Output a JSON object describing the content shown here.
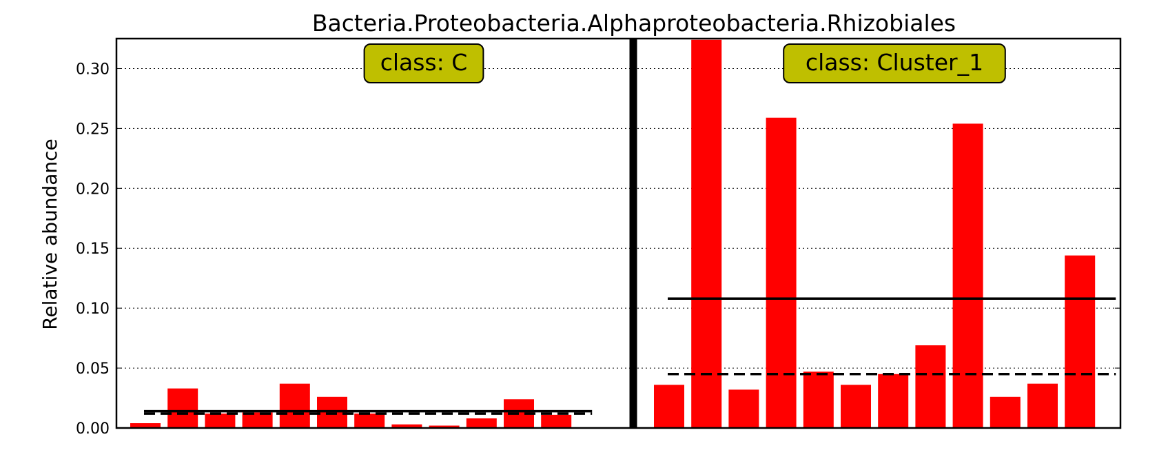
{
  "chart_data": {
    "type": "bar",
    "title": "Bacteria.Proteobacteria.Alphaproteobacteria.Rhizobiales",
    "ylabel": "Relative abundance",
    "xlabel": "",
    "ylim": [
      0,
      0.325
    ],
    "yticks": [
      "0.00",
      "0.05",
      "0.10",
      "0.15",
      "0.20",
      "0.25",
      "0.30"
    ],
    "grid": "horizontal dotted",
    "bar_color": "#ff0000",
    "label_box_color": "#bfbf00",
    "panels": [
      {
        "class_label": "class: C",
        "values": [
          0.004,
          0.033,
          0.012,
          0.013,
          0.037,
          0.026,
          0.012,
          0.003,
          0.002,
          0.008,
          0.024,
          0.011
        ],
        "mean": 0.014,
        "median": 0.012
      },
      {
        "class_label": "class: Cluster_1",
        "values": [
          0.036,
          0.324,
          0.032,
          0.259,
          0.047,
          0.036,
          0.045,
          0.069,
          0.254,
          0.026,
          0.037,
          0.144
        ],
        "mean": 0.108,
        "median": 0.045
      }
    ]
  }
}
